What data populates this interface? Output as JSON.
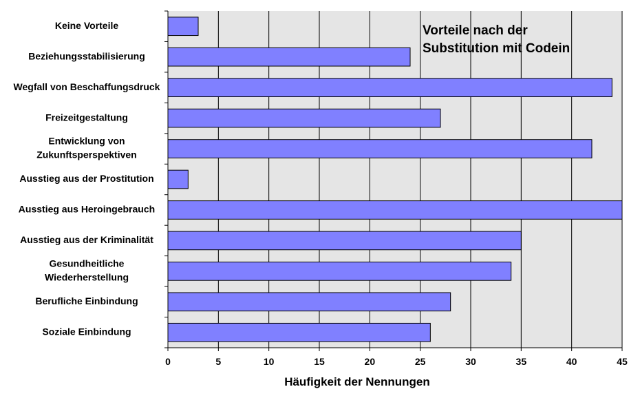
{
  "chart_data": {
    "type": "bar",
    "orientation": "horizontal",
    "title_lines": [
      "Vorteile nach der",
      "Substitution mit Codein"
    ],
    "xlabel": "Häufigkeit der Nennungen",
    "ylabel": "",
    "xlim": [
      0,
      45
    ],
    "xticks": [
      "0",
      "5",
      "10",
      "15",
      "20",
      "25",
      "30",
      "35",
      "40",
      "45"
    ],
    "grid": "vertical",
    "legend": "none",
    "colors": {
      "bar_fill": "#8080ff",
      "bar_stroke": "#000000",
      "plot_background": "#e5e5e5",
      "gridline": "#000000"
    },
    "categories": [
      [
        "Keine Vorteile"
      ],
      [
        "Beziehungsstabilisierung"
      ],
      [
        "Wegfall von Beschaffungsdruck"
      ],
      [
        "Freizeitgestaltung"
      ],
      [
        "Entwicklung von",
        "Zukunftsperspektiven"
      ],
      [
        "Ausstieg aus der Prostitution"
      ],
      [
        "Ausstieg aus Heroingebrauch"
      ],
      [
        "Ausstieg aus der Kriminalität"
      ],
      [
        "Gesundheitliche",
        "Wiederherstellung"
      ],
      [
        "Berufliche Einbindung"
      ],
      [
        "Soziale Einbindung"
      ]
    ],
    "values": [
      3,
      24,
      44,
      27,
      42,
      2,
      45,
      35,
      34,
      28,
      26
    ]
  }
}
